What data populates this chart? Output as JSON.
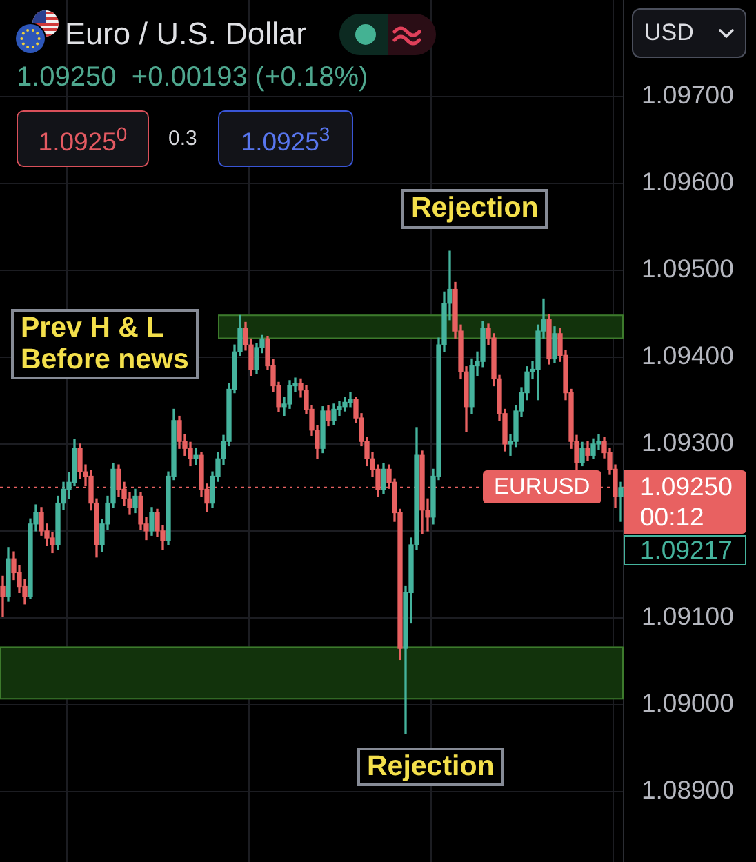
{
  "chart_data": {
    "type": "candlestick",
    "title": "Euro / U.S. Dollar",
    "subtitle": "1.09250  +0.00193 (+0.18%)",
    "categories": [
      null,
      null,
      null,
      null,
      null,
      null,
      null,
      null,
      null,
      null,
      null,
      null,
      null,
      null,
      null,
      null,
      null,
      null,
      null,
      null,
      null,
      null,
      null,
      null,
      null,
      null,
      null,
      null,
      null,
      null,
      null,
      null,
      null,
      null,
      null,
      null,
      null,
      null,
      null,
      null,
      null,
      null,
      null,
      null,
      null,
      null,
      null,
      null,
      null,
      null,
      null,
      null,
      null,
      null,
      null,
      null,
      null,
      null,
      null,
      null,
      null,
      null,
      null,
      null,
      null,
      null,
      null,
      null,
      null,
      null,
      null,
      null,
      null,
      null,
      null,
      null,
      null,
      null,
      null,
      null,
      null,
      null,
      null,
      null,
      null,
      null,
      null,
      null,
      null,
      null,
      null,
      null,
      null,
      null,
      null,
      null,
      null,
      null,
      null,
      null,
      null,
      null,
      null,
      null,
      null,
      null,
      null,
      null,
      null,
      null,
      null,
      null,
      null
    ],
    "ohlc": [
      [
        1.09136,
        1.09148,
        1.09102,
        1.09125
      ],
      [
        1.09125,
        1.09181,
        1.09119,
        1.09168
      ],
      [
        1.09168,
        1.09176,
        1.09144,
        1.09152
      ],
      [
        1.09152,
        1.0916,
        1.09129,
        1.09136
      ],
      [
        1.09136,
        1.09144,
        1.09116,
        1.09125
      ],
      [
        1.09125,
        1.09214,
        1.09122,
        1.09208
      ],
      [
        1.09208,
        1.0923,
        1.092,
        1.09221
      ],
      [
        1.09221,
        1.09227,
        1.09195,
        1.092
      ],
      [
        1.092,
        1.09208,
        1.09183,
        1.09192
      ],
      [
        1.09192,
        1.09198,
        1.09175,
        1.09184
      ],
      [
        1.09184,
        1.0924,
        1.09179,
        1.09232
      ],
      [
        1.09232,
        1.09256,
        1.09225,
        1.09248
      ],
      [
        1.09248,
        1.09267,
        1.09237,
        1.09256
      ],
      [
        1.09256,
        1.09305,
        1.09252,
        1.09295
      ],
      [
        1.09295,
        1.093,
        1.0926,
        1.09268
      ],
      [
        1.09268,
        1.09276,
        1.09252,
        1.09263
      ],
      [
        1.09263,
        1.0927,
        1.09224,
        1.09232
      ],
      [
        1.09232,
        1.09237,
        1.0917,
        1.09184
      ],
      [
        1.09184,
        1.09213,
        1.09176,
        1.09208
      ],
      [
        1.09208,
        1.0924,
        1.09202,
        1.09232
      ],
      [
        1.09232,
        1.09278,
        1.09227,
        1.09271
      ],
      [
        1.09271,
        1.09276,
        1.0924,
        1.09248
      ],
      [
        1.09248,
        1.09256,
        1.09229,
        1.09237
      ],
      [
        1.09237,
        1.09244,
        1.09219,
        1.09227
      ],
      [
        1.09227,
        1.09248,
        1.09221,
        1.0924
      ],
      [
        1.0924,
        1.09244,
        1.09202,
        1.09208
      ],
      [
        1.09208,
        1.09216,
        1.0919,
        1.092
      ],
      [
        1.092,
        1.09227,
        1.09195,
        1.09221
      ],
      [
        1.09221,
        1.09225,
        1.09194,
        1.092
      ],
      [
        1.092,
        1.09206,
        1.09179,
        1.09189
      ],
      [
        1.09189,
        1.09268,
        1.09184,
        1.09263
      ],
      [
        1.09263,
        1.0934,
        1.09259,
        1.09327
      ],
      [
        1.09327,
        1.09332,
        1.09295,
        1.09303
      ],
      [
        1.09303,
        1.09311,
        1.09287,
        1.09295
      ],
      [
        1.09295,
        1.09302,
        1.09275,
        1.09283
      ],
      [
        1.09283,
        1.09295,
        1.09276,
        1.09287
      ],
      [
        1.09287,
        1.0929,
        1.0924,
        1.09248
      ],
      [
        1.09248,
        1.09254,
        1.09222,
        1.09232
      ],
      [
        1.09232,
        1.09268,
        1.09227,
        1.09263
      ],
      [
        1.09263,
        1.0929,
        1.09257,
        1.09283
      ],
      [
        1.09283,
        1.0931,
        1.09276,
        1.09303
      ],
      [
        1.09303,
        1.0937,
        1.09298,
        1.09363
      ],
      [
        1.09363,
        1.09414,
        1.09359,
        1.09406
      ],
      [
        1.09406,
        1.09448,
        1.09402,
        1.09433
      ],
      [
        1.09433,
        1.0944,
        1.09408,
        1.09414
      ],
      [
        1.09414,
        1.09421,
        1.09379,
        1.09386
      ],
      [
        1.09386,
        1.09416,
        1.09381,
        1.09411
      ],
      [
        1.09411,
        1.09425,
        1.09405,
        1.09421
      ],
      [
        1.09421,
        1.09424,
        1.09386,
        1.0939
      ],
      [
        1.0939,
        1.09397,
        1.0936,
        1.09367
      ],
      [
        1.09367,
        1.09371,
        1.09337,
        1.09343
      ],
      [
        1.09343,
        1.09354,
        1.09333,
        1.09346
      ],
      [
        1.09346,
        1.09373,
        1.09341,
        1.09367
      ],
      [
        1.09367,
        1.09376,
        1.0936,
        1.0937
      ],
      [
        1.0937,
        1.09375,
        1.09354,
        1.09362
      ],
      [
        1.09362,
        1.09367,
        1.09335,
        1.0934
      ],
      [
        1.0934,
        1.09344,
        1.0931,
        1.09316
      ],
      [
        1.09316,
        1.09321,
        1.09283,
        1.09295
      ],
      [
        1.09295,
        1.09343,
        1.0929,
        1.09338
      ],
      [
        1.09338,
        1.09344,
        1.09321,
        1.09327
      ],
      [
        1.09327,
        1.09346,
        1.09322,
        1.0934
      ],
      [
        1.0934,
        1.09349,
        1.09333,
        1.09343
      ],
      [
        1.09343,
        1.09354,
        1.09338,
        1.09348
      ],
      [
        1.09348,
        1.09359,
        1.09343,
        1.09351
      ],
      [
        1.09351,
        1.09354,
        1.09325,
        1.0933
      ],
      [
        1.0933,
        1.09335,
        1.09298,
        1.09303
      ],
      [
        1.09303,
        1.09308,
        1.09275,
        1.09283
      ],
      [
        1.09283,
        1.0929,
        1.09263,
        1.09271
      ],
      [
        1.09271,
        1.09276,
        1.0924,
        1.09248
      ],
      [
        1.09248,
        1.09278,
        1.09243,
        1.09271
      ],
      [
        1.09271,
        1.09276,
        1.09249,
        1.09256
      ],
      [
        1.09256,
        1.0926,
        1.09211,
        1.09221
      ],
      [
        1.09221,
        1.09225,
        1.09052,
        1.09065
      ],
      [
        1.09065,
        1.09136,
        1.08967,
        1.09129
      ],
      [
        1.09129,
        1.09192,
        1.09094,
        1.09184
      ],
      [
        1.09184,
        1.09319,
        1.09179,
        1.09287
      ],
      [
        1.09287,
        1.09292,
        1.09197,
        1.09224
      ],
      [
        1.09224,
        1.09237,
        1.092,
        1.09216
      ],
      [
        1.09216,
        1.09271,
        1.09208,
        1.09263
      ],
      [
        1.09263,
        1.09422,
        1.09259,
        1.09414
      ],
      [
        1.09414,
        1.09475,
        1.09406,
        1.09462
      ],
      [
        1.09462,
        1.09522,
        1.09443,
        1.09478
      ],
      [
        1.09478,
        1.09486,
        1.09422,
        1.0943
      ],
      [
        1.0943,
        1.09437,
        1.09375,
        1.09383
      ],
      [
        1.09383,
        1.09389,
        1.09314,
        1.09343
      ],
      [
        1.09343,
        1.09398,
        1.09335,
        1.0939
      ],
      [
        1.0939,
        1.09406,
        1.09379,
        1.09395
      ],
      [
        1.09395,
        1.09441,
        1.09389,
        1.09433
      ],
      [
        1.09433,
        1.09438,
        1.09414,
        1.09422
      ],
      [
        1.09422,
        1.09427,
        1.09367,
        1.09375
      ],
      [
        1.09375,
        1.09379,
        1.09327,
        1.09335
      ],
      [
        1.09335,
        1.0934,
        1.09292,
        1.093
      ],
      [
        1.093,
        1.09311,
        1.09287,
        1.09303
      ],
      [
        1.09303,
        1.09344,
        1.09297,
        1.09338
      ],
      [
        1.09338,
        1.09365,
        1.09332,
        1.09359
      ],
      [
        1.09359,
        1.09389,
        1.09351,
        1.09383
      ],
      [
        1.09383,
        1.09395,
        1.09375,
        1.09386
      ],
      [
        1.09386,
        1.09437,
        1.09351,
        1.0943
      ],
      [
        1.0943,
        1.09467,
        1.09422,
        1.09443
      ],
      [
        1.09443,
        1.09449,
        1.09392,
        1.09398
      ],
      [
        1.09398,
        1.09435,
        1.09394,
        1.09427
      ],
      [
        1.09427,
        1.09433,
        1.09395,
        1.09402
      ],
      [
        1.09402,
        1.09408,
        1.09351,
        1.09359
      ],
      [
        1.09359,
        1.09363,
        1.09295,
        1.09303
      ],
      [
        1.09303,
        1.0931,
        1.09271,
        1.09279
      ],
      [
        1.09279,
        1.09302,
        1.09275,
        1.09295
      ],
      [
        1.09295,
        1.09303,
        1.09281,
        1.09287
      ],
      [
        1.09287,
        1.09306,
        1.09283,
        1.093
      ],
      [
        1.093,
        1.09311,
        1.09294,
        1.09303
      ],
      [
        1.09303,
        1.09308,
        1.09284,
        1.0929
      ],
      [
        1.0929,
        1.09295,
        1.09265,
        1.09271
      ],
      [
        1.09271,
        1.09276,
        1.09227,
        1.0924
      ],
      [
        1.0924,
        1.09256,
        1.09211,
        1.0925
      ]
    ],
    "colors": [
      "#e86161",
      "#45b39d",
      "#e86161",
      "#e86161",
      "#e86161",
      "#45b39d",
      "#45b39d",
      "#e86161",
      "#e86161",
      "#e86161",
      "#45b39d",
      "#45b39d",
      "#45b39d",
      "#45b39d",
      "#e86161",
      "#e86161",
      "#e86161",
      "#e86161",
      "#45b39d",
      "#45b39d",
      "#45b39d",
      "#e86161",
      "#e86161",
      "#e86161",
      "#45b39d",
      "#e86161",
      "#e86161",
      "#45b39d",
      "#e86161",
      "#e86161",
      "#45b39d",
      "#45b39d",
      "#e86161",
      "#e86161",
      "#e86161",
      "#45b39d",
      "#e86161",
      "#e86161",
      "#45b39d",
      "#45b39d",
      "#45b39d",
      "#45b39d",
      "#45b39d",
      "#45b39d",
      "#e86161",
      "#e86161",
      "#45b39d",
      "#45b39d",
      "#e86161",
      "#e86161",
      "#e86161",
      "#45b39d",
      "#45b39d",
      "#45b39d",
      "#e86161",
      "#e86161",
      "#e86161",
      "#e86161",
      "#45b39d",
      "#e86161",
      "#45b39d",
      "#45b39d",
      "#45b39d",
      "#45b39d",
      "#e86161",
      "#e86161",
      "#e86161",
      "#e86161",
      "#e86161",
      "#45b39d",
      "#e86161",
      "#e86161",
      "#e86161",
      "#45b39d",
      "#45b39d",
      "#45b39d",
      "#e86161",
      "#e86161",
      "#45b39d",
      "#45b39d",
      "#45b39d",
      "#45b39d",
      "#e86161",
      "#e86161",
      "#e86161",
      "#45b39d",
      "#45b39d",
      "#45b39d",
      "#e86161",
      "#e86161",
      "#e86161",
      "#e86161",
      "#45b39d",
      "#45b39d",
      "#45b39d",
      "#45b39d",
      "#45b39d",
      "#45b39d",
      "#45b39d",
      "#e86161",
      "#45b39d",
      "#e86161",
      "#e86161",
      "#e86161",
      "#e86161",
      "#45b39d",
      "#e86161",
      "#45b39d",
      "#45b39d",
      "#e86161",
      "#e86161",
      "#e86161",
      "#45b39d"
    ],
    "ylim": [
      1.08819,
      1.09811
    ],
    "yticks": [
      {
        "value": 1.089,
        "label": "1.08900"
      },
      {
        "value": 1.09,
        "label": "1.09000"
      },
      {
        "value": 1.091,
        "label": "1.09100"
      },
      {
        "value": 1.092,
        "label": null
      },
      {
        "value": 1.093,
        "label": "1.09300"
      },
      {
        "value": 1.094,
        "label": "1.09400"
      },
      {
        "value": 1.095,
        "label": "1.09500"
      },
      {
        "value": 1.096,
        "label": "1.09600"
      },
      {
        "value": 1.097,
        "label": "1.09700"
      }
    ],
    "grid": true,
    "tick_labels": "y",
    "bands": [
      {
        "axis": "y",
        "from": 1.09421,
        "to": 1.09449,
        "label": "Prev H & L\nBefore news",
        "color": "#12330c"
      },
      {
        "axis": "y",
        "from": 1.09006,
        "to": 1.09067,
        "color": "#12330c"
      }
    ],
    "ref_lines": [
      {
        "axis": "y",
        "value": 1.0925,
        "label": "EURUSD",
        "color": "#e86161",
        "line_style": "dotted"
      }
    ],
    "annotations": [
      "1.0925$^{0}$",
      "0.3",
      "1.0925$^{3}$",
      "USD",
      "Rejection",
      "Rejection",
      "1.09250",
      "00:12",
      "1.09217"
    ]
  }
}
